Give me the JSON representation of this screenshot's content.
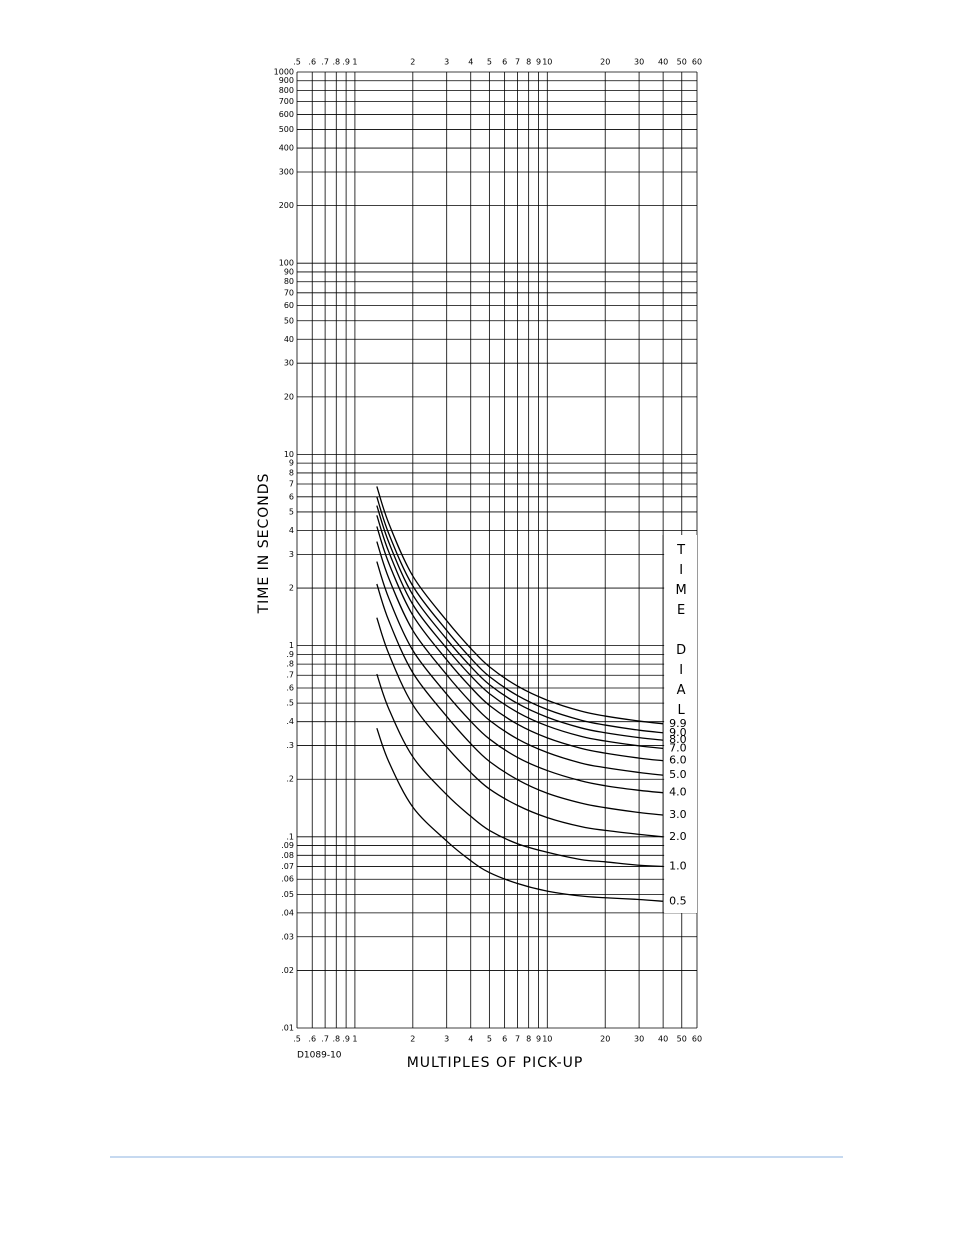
{
  "chart_data": {
    "type": "line",
    "xlabel": "MULTIPLES OF PICK-UP",
    "ylabel": "TIME IN SECONDS",
    "annotation": "D1089-10",
    "legend_title": "TIME DIAL",
    "legend_position": "right",
    "xscale": "log",
    "yscale": "log",
    "grid": true,
    "xlim": [
      0.5,
      60
    ],
    "ylim": [
      0.01,
      1000
    ],
    "xticks": [
      {
        "value": 0.5,
        "label": ".5"
      },
      {
        "value": 0.6,
        "label": ".6"
      },
      {
        "value": 0.7,
        "label": ".7"
      },
      {
        "value": 0.8,
        "label": ".8"
      },
      {
        "value": 0.9,
        "label": ".9"
      },
      1,
      2,
      3,
      4,
      5,
      6,
      7,
      8,
      9,
      10,
      20,
      30,
      40,
      50,
      60
    ],
    "yticks": [
      1000,
      900,
      800,
      700,
      600,
      500,
      400,
      300,
      200,
      100,
      90,
      80,
      70,
      60,
      50,
      40,
      30,
      20,
      10,
      9,
      8,
      7,
      6,
      5,
      4,
      3,
      2,
      1,
      {
        "value": 0.9,
        "label": ".9"
      },
      {
        "value": 0.8,
        "label": ".8"
      },
      {
        "value": 0.7,
        "label": ".7"
      },
      {
        "value": 0.6,
        "label": ".6"
      },
      {
        "value": 0.5,
        "label": ".5"
      },
      {
        "value": 0.4,
        "label": ".4"
      },
      {
        "value": 0.3,
        "label": ".3"
      },
      {
        "value": 0.2,
        "label": ".2"
      },
      {
        "value": 0.1,
        "label": ".1"
      },
      {
        "value": 0.09,
        "label": ".09"
      },
      {
        "value": 0.08,
        "label": ".08"
      },
      {
        "value": 0.07,
        "label": ".07"
      },
      {
        "value": 0.06,
        "label": ".06"
      },
      {
        "value": 0.05,
        "label": ".05"
      },
      {
        "value": 0.04,
        "label": ".04"
      },
      {
        "value": 0.03,
        "label": ".03"
      },
      {
        "value": 0.02,
        "label": ".02"
      },
      {
        "value": 0.01,
        "label": ".01"
      }
    ],
    "x": [
      1.3,
      1.5,
      2,
      3,
      4,
      5,
      7,
      10,
      15,
      20,
      30,
      40
    ],
    "series": [
      {
        "name": "9.9",
        "color": "#000000",
        "values": [
          6.8,
          4.36,
          2.31,
          1.35,
          0.967,
          0.775,
          0.614,
          0.518,
          0.454,
          0.428,
          0.403,
          0.39
        ]
      },
      {
        "name": "9.0",
        "color": "#000000",
        "values": [
          6.0,
          3.85,
          2.05,
          1.2,
          0.859,
          0.689,
          0.548,
          0.463,
          0.407,
          0.384,
          0.361,
          0.35
        ]
      },
      {
        "name": "8.0",
        "color": "#000000",
        "values": [
          5.4,
          3.47,
          1.84,
          1.08,
          0.777,
          0.625,
          0.498,
          0.422,
          0.371,
          0.35,
          0.33,
          0.32
        ]
      },
      {
        "name": "7.0",
        "color": "#000000",
        "values": [
          4.8,
          3.09,
          1.64,
          0.967,
          0.696,
          0.561,
          0.448,
          0.38,
          0.335,
          0.317,
          0.299,
          0.29
        ]
      },
      {
        "name": "6.0",
        "color": "#000000",
        "values": [
          4.2,
          2.7,
          1.44,
          0.843,
          0.606,
          0.487,
          0.388,
          0.329,
          0.29,
          0.274,
          0.258,
          0.25
        ]
      },
      {
        "name": "5.0",
        "color": "#000000",
        "values": [
          3.5,
          2.25,
          1.2,
          0.704,
          0.506,
          0.407,
          0.325,
          0.276,
          0.243,
          0.23,
          0.217,
          0.21
        ]
      },
      {
        "name": "4.0",
        "color": "#000000",
        "values": [
          2.75,
          1.77,
          0.944,
          0.557,
          0.402,
          0.325,
          0.26,
          0.222,
          0.196,
          0.185,
          0.175,
          0.17
        ]
      },
      {
        "name": "3.0",
        "color": "#000000",
        "values": [
          2.1,
          1.35,
          0.721,
          0.426,
          0.307,
          0.248,
          0.199,
          0.169,
          0.15,
          0.142,
          0.134,
          0.13
        ]
      },
      {
        "name": "2.0",
        "color": "#000000",
        "values": [
          1.4,
          0.906,
          0.49,
          0.295,
          0.217,
          0.178,
          0.146,
          0.126,
          0.113,
          0.108,
          0.103,
          0.1
        ]
      },
      {
        "name": "1.0",
        "color": "#000000",
        "values": [
          0.71,
          0.467,
          0.262,
          0.166,
          0.128,
          0.108,
          0.092,
          0.083,
          0.076,
          0.074,
          0.071,
          0.07
        ]
      },
      {
        "name": "0.5",
        "color": "#000000",
        "values": [
          0.37,
          0.247,
          0.143,
          0.095,
          0.075,
          0.065,
          0.057,
          0.052,
          0.049,
          0.048,
          0.047,
          0.046
        ]
      }
    ]
  }
}
